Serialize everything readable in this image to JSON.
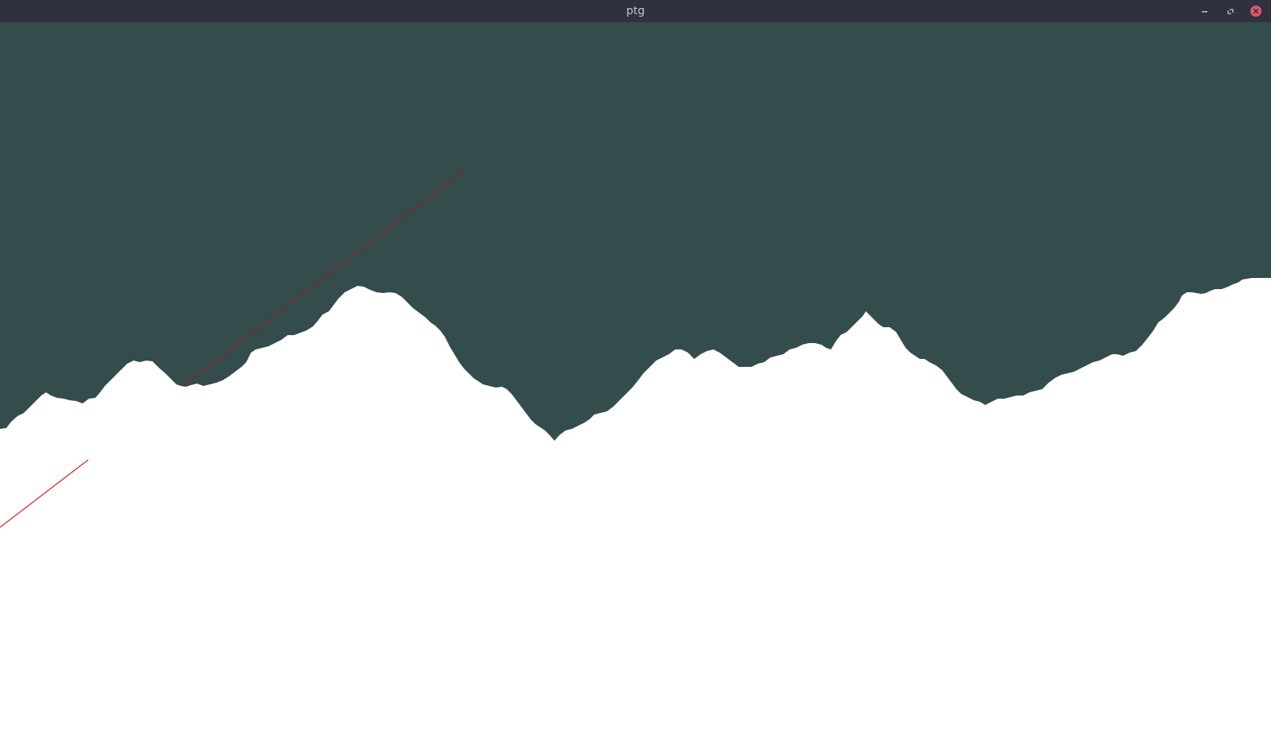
{
  "window": {
    "title": "ptg",
    "titlebar_color": "#2f323e",
    "title_color": "#c3c7d1"
  },
  "controls": {
    "minimize_icon": "minimize-icon",
    "maximize_icon": "maximize-icon",
    "close_icon": "close-icon",
    "close_color": "#e0566b"
  },
  "scene": {
    "sky_color": "#344d4c",
    "terrain_color": "#ffffff",
    "ray_color": "#e01e1e"
  }
}
